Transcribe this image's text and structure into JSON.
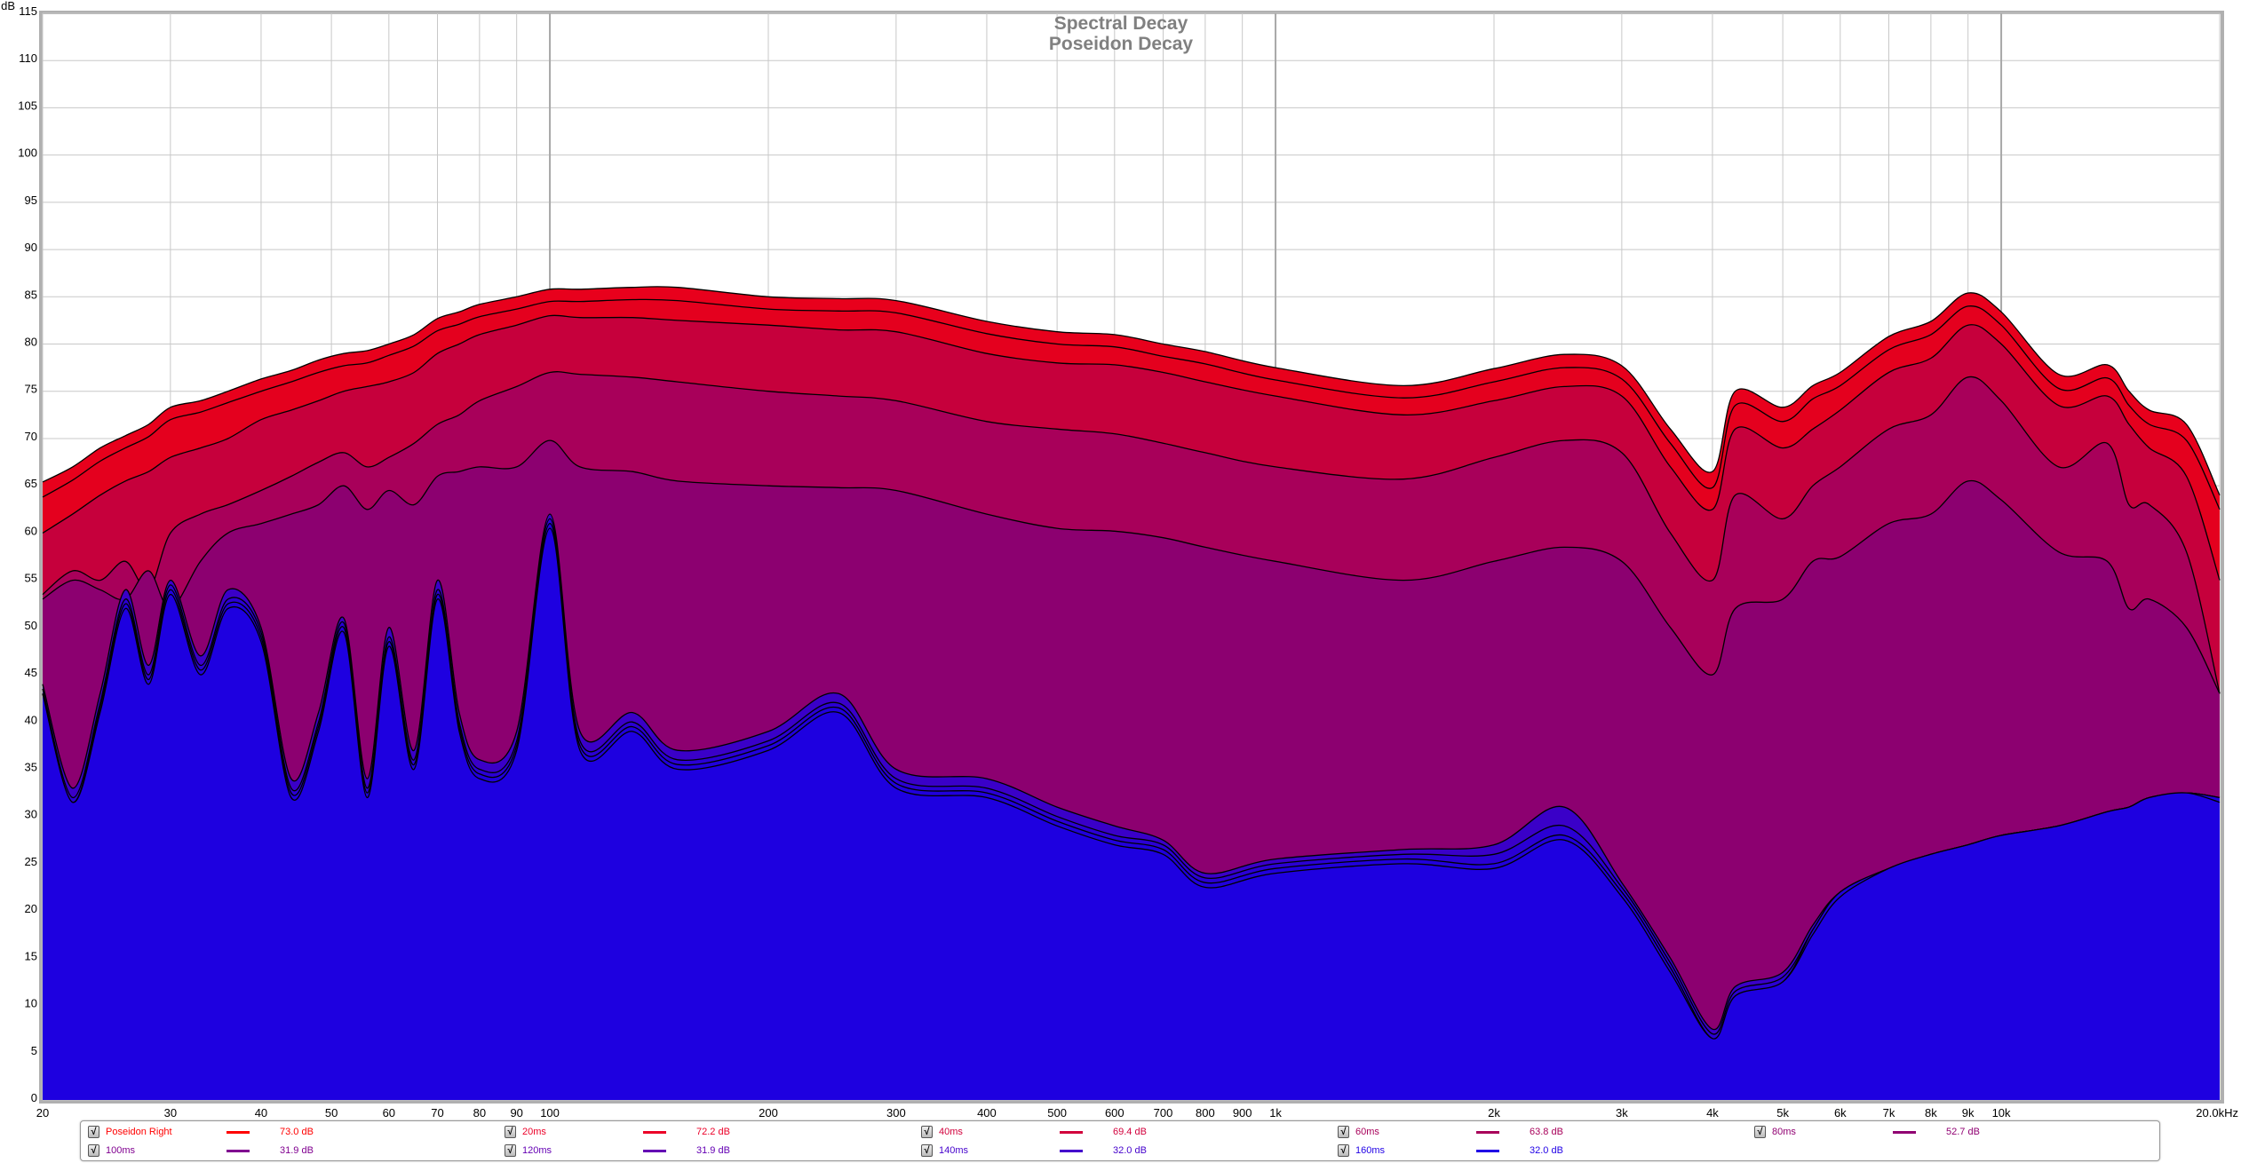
{
  "chart_data": {
    "type": "area",
    "title": "Spectral Decay",
    "subtitle": "Poseidon Decay",
    "ylabel": "dB",
    "xlabel": "",
    "xscale": "log",
    "xlim": [
      20,
      20000
    ],
    "ylim": [
      0,
      115
    ],
    "grid": true,
    "legend_position": "bottom",
    "y_ticks": [
      "0",
      "5",
      "10",
      "15",
      "20",
      "25",
      "30",
      "35",
      "40",
      "45",
      "50",
      "55",
      "60",
      "65",
      "70",
      "75",
      "80",
      "85",
      "90",
      "95",
      "100",
      "105",
      "110",
      "115"
    ],
    "x_ticks": [
      {
        "f": 20,
        "label": "20"
      },
      {
        "f": 30,
        "label": "30"
      },
      {
        "f": 40,
        "label": "40"
      },
      {
        "f": 50,
        "label": "50"
      },
      {
        "f": 60,
        "label": "60"
      },
      {
        "f": 70,
        "label": "70"
      },
      {
        "f": 80,
        "label": "80"
      },
      {
        "f": 90,
        "label": "90"
      },
      {
        "f": 100,
        "label": "100"
      },
      {
        "f": 200,
        "label": "200"
      },
      {
        "f": 300,
        "label": "300"
      },
      {
        "f": 400,
        "label": "400"
      },
      {
        "f": 500,
        "label": "500"
      },
      {
        "f": 600,
        "label": "600"
      },
      {
        "f": 700,
        "label": "700"
      },
      {
        "f": 800,
        "label": "800"
      },
      {
        "f": 900,
        "label": "900"
      },
      {
        "f": 1000,
        "label": "1k"
      },
      {
        "f": 2000,
        "label": "2k"
      },
      {
        "f": 3000,
        "label": "3k"
      },
      {
        "f": 4000,
        "label": "4k"
      },
      {
        "f": 5000,
        "label": "5k"
      },
      {
        "f": 6000,
        "label": "6k"
      },
      {
        "f": 7000,
        "label": "7k"
      },
      {
        "f": 8000,
        "label": "8k"
      },
      {
        "f": 9000,
        "label": "9k"
      },
      {
        "f": 10000,
        "label": "10k"
      },
      {
        "f": 20000,
        "label": "20.0kHz"
      }
    ],
    "x": [
      20,
      22,
      24,
      26,
      28,
      30,
      33,
      36,
      40,
      44,
      48,
      52,
      56,
      60,
      65,
      70,
      75,
      80,
      90,
      100,
      110,
      130,
      150,
      200,
      250,
      300,
      400,
      500,
      600,
      700,
      800,
      1000,
      1500,
      2000,
      2500,
      3000,
      3500,
      4000,
      4300,
      5000,
      5500,
      6000,
      7000,
      8000,
      9000,
      10000,
      12000,
      14000,
      15000,
      16000,
      18000,
      20000
    ],
    "series": [
      {
        "name": "Poseidon Right",
        "legend_value": "73.0 dB",
        "color": "#ff0000",
        "fill": "#e8001c",
        "values": [
          65.4,
          67,
          69,
          70.3,
          71.5,
          73.3,
          74,
          75,
          76.3,
          77.2,
          78.3,
          79,
          79.3,
          80,
          81,
          82.7,
          83.4,
          84.2,
          85,
          85.8,
          85.8,
          86,
          86,
          85,
          84.8,
          84.6,
          82.4,
          81.3,
          81,
          80,
          79.2,
          77.5,
          75.6,
          77.4,
          78.9,
          77.7,
          71,
          66.5,
          75,
          73.3,
          75.6,
          77,
          80.8,
          82.4,
          85.4,
          83.4,
          76.8,
          77.8,
          75,
          73,
          71.5,
          64
        ]
      },
      {
        "name": "20ms",
        "legend_value": "72.2 dB",
        "color": "#ec0028",
        "fill": "#e4001e",
        "values": [
          63.8,
          65.6,
          67.6,
          69,
          70.2,
          72,
          72.8,
          73.8,
          75,
          76,
          77,
          77.7,
          78,
          78.8,
          79.8,
          81.4,
          82.1,
          82.9,
          83.7,
          84.5,
          84.5,
          84.7,
          84.6,
          83.7,
          83.5,
          83.3,
          81.1,
          80,
          79.7,
          78.7,
          77.9,
          76.2,
          74.3,
          76,
          77.5,
          76.3,
          69.5,
          64.8,
          73.5,
          71.8,
          74.2,
          75.6,
          79.4,
          81,
          84,
          82,
          75.3,
          76.4,
          73.5,
          71.5,
          69.8,
          62.5
        ]
      },
      {
        "name": "40ms",
        "legend_value": "69.4 dB",
        "color": "#d2003c",
        "fill": "#c6003c",
        "values": [
          60,
          62,
          64,
          65.5,
          66.5,
          68,
          69,
          70,
          72,
          73,
          74,
          75,
          75.5,
          76,
          77,
          79,
          80,
          81,
          82,
          83,
          82.8,
          82.8,
          82.5,
          82,
          81.5,
          81.3,
          79,
          78,
          77.8,
          77,
          76,
          74.5,
          72.5,
          74,
          75.5,
          74.5,
          67,
          62.5,
          71,
          69,
          71,
          73,
          77,
          78.5,
          82,
          80,
          73.5,
          74.5,
          71.5,
          69,
          66,
          55
        ]
      },
      {
        "name": "60ms",
        "legend_value": "63.8 dB",
        "color": "#a8005a",
        "fill": "#a8005a",
        "values": [
          53.5,
          56,
          55,
          57,
          54,
          60,
          62,
          63,
          64.5,
          66,
          67.5,
          68.5,
          67,
          68,
          69.5,
          71.5,
          72.5,
          74,
          75.5,
          77,
          76.8,
          76.5,
          76,
          75,
          74.5,
          74,
          71.8,
          71,
          70.5,
          69.5,
          68.5,
          67,
          65.7,
          68,
          69.8,
          68.5,
          60,
          55,
          64,
          61.5,
          65,
          67,
          71,
          72.5,
          76.5,
          74,
          67,
          69.5,
          63,
          63,
          58,
          43
        ]
      },
      {
        "name": "80ms",
        "legend_value": "52.7 dB",
        "color": "#900072",
        "fill": "#8c0070",
        "values": [
          53,
          55,
          54,
          53,
          56,
          52,
          57,
          60,
          61,
          62,
          63,
          65,
          62.5,
          64.5,
          63,
          66,
          66.5,
          67,
          67,
          69.8,
          67,
          66.5,
          65.5,
          65,
          64.8,
          64.5,
          62,
          60.5,
          60.2,
          59.5,
          58.5,
          57,
          55,
          57,
          58.5,
          57,
          50,
          45,
          52,
          53,
          57,
          57.5,
          61,
          62,
          65.5,
          63.5,
          58,
          57,
          52,
          53,
          50,
          43
        ]
      },
      {
        "name": "100ms",
        "legend_value": "31.9 dB",
        "color": "#800090",
        "fill": "#3a00c8",
        "values": [
          44,
          33,
          43,
          54,
          46,
          55,
          47,
          54,
          50,
          34,
          41,
          51,
          34,
          50,
          37,
          55,
          41,
          36,
          39,
          62,
          39,
          41,
          37,
          39,
          43,
          35,
          34,
          31,
          29,
          27.5,
          24,
          25.5,
          26.5,
          27,
          31,
          23,
          15,
          7.5,
          12,
          13.5,
          18.5,
          22,
          24.5,
          26,
          27,
          28,
          29,
          30.5,
          31,
          32,
          32.5,
          32
        ]
      },
      {
        "name": "120ms",
        "legend_value": "31.9 dB",
        "color": "#6400b4",
        "fill": "#2a00d4",
        "values": [
          43.5,
          32,
          42,
          53,
          45,
          54.5,
          46,
          53,
          49.5,
          33,
          40,
          50.5,
          33,
          49,
          36,
          54,
          40,
          35,
          38,
          61.5,
          38,
          40,
          36,
          38,
          42,
          34,
          33,
          30,
          28,
          27,
          23.5,
          25,
          26,
          26,
          29,
          22.5,
          14.5,
          7,
          11.5,
          13,
          18,
          22,
          24.5,
          26,
          27,
          28,
          29,
          30.5,
          31,
          32,
          32.5,
          32
        ]
      },
      {
        "name": "140ms",
        "legend_value": "32.0 dB",
        "color": "#4400cc",
        "fill": "#2000dc",
        "values": [
          43,
          31.5,
          41.5,
          52.5,
          44.5,
          54,
          45.5,
          52.5,
          49,
          32.5,
          39.5,
          50,
          32.5,
          48.5,
          35.5,
          53.5,
          39.5,
          34.5,
          37.5,
          61,
          37.5,
          39.5,
          35.5,
          37.5,
          41.5,
          33.5,
          32.5,
          29.5,
          27.5,
          26.5,
          23,
          24.5,
          25.5,
          25,
          28,
          22,
          14,
          6.5,
          11,
          12.5,
          18,
          22,
          24.5,
          26,
          27,
          28,
          29,
          30.5,
          31,
          32,
          32.5,
          32
        ]
      },
      {
        "name": "160ms",
        "legend_value": "32.0 dB",
        "color": "#2000e6",
        "fill": "#1e00e0",
        "values": [
          43,
          31.5,
          41,
          52,
          44,
          53.5,
          45,
          52,
          48.5,
          32,
          39,
          49.5,
          32,
          48,
          35,
          53,
          39,
          34,
          37,
          60.5,
          37,
          39,
          35,
          37,
          41,
          33,
          32,
          29,
          27,
          26,
          22.5,
          24,
          25,
          24.5,
          27.5,
          21.5,
          13.5,
          6.5,
          11,
          12.5,
          17.5,
          21.5,
          24.5,
          26,
          27,
          28,
          29,
          30.5,
          31,
          32,
          32.5,
          31.5
        ]
      }
    ]
  },
  "legend": {
    "check_mark": "√"
  }
}
